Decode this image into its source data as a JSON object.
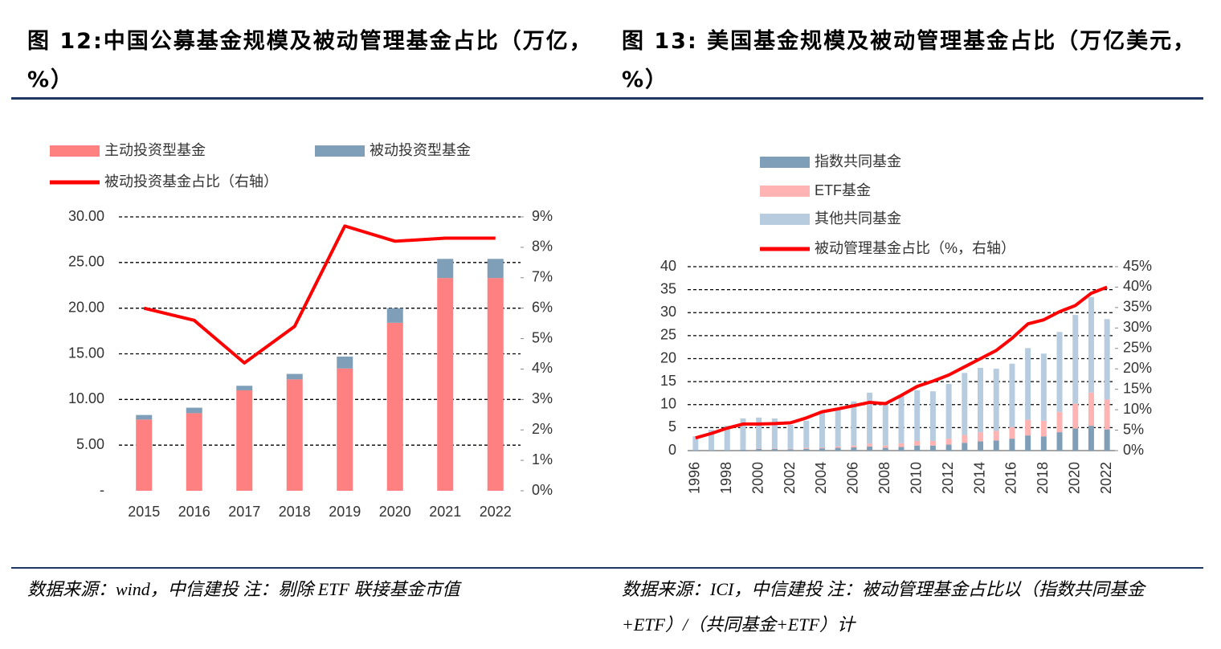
{
  "chart_data": [
    {
      "type": "bar",
      "title": "图 12:中国公募基金规模及被动管理基金占比（万亿，%）",
      "note": "数据来源：wind，中信建投 注：剔除 ETF 联接基金市值",
      "categories": [
        "2015",
        "2016",
        "2017",
        "2018",
        "2019",
        "2020",
        "2021",
        "2022"
      ],
      "series": [
        {
          "name": "主动投资型基金",
          "color": "#ff8080",
          "values": [
            7.8,
            8.5,
            11.0,
            12.2,
            13.4,
            18.4,
            23.3,
            23.3
          ]
        },
        {
          "name": "被动投资型基金",
          "color": "#7f9fb8",
          "values": [
            0.5,
            0.6,
            0.5,
            0.6,
            1.3,
            1.6,
            2.1,
            2.1
          ]
        },
        {
          "name": "被动投资基金占比（右轴）",
          "color": "#ff0000",
          "axis": "y2",
          "type": "line",
          "values": [
            6.0,
            5.6,
            4.2,
            5.4,
            8.7,
            8.2,
            8.3,
            8.3
          ]
        }
      ],
      "ylim": [
        0,
        30
      ],
      "yticks": [
        {
          "value": 0,
          "label": "-"
        },
        {
          "value": 5,
          "label": "5.00"
        },
        {
          "value": 10,
          "label": "10.00"
        },
        {
          "value": 15,
          "label": "15.00"
        },
        {
          "value": 20,
          "label": "20.00"
        },
        {
          "value": 25,
          "label": "25.00"
        },
        {
          "value": 30,
          "label": "30.00"
        }
      ],
      "y2lim": [
        0,
        9
      ],
      "y2ticks": [
        {
          "value": 0,
          "label": "0%"
        },
        {
          "value": 1,
          "label": "1%"
        },
        {
          "value": 2,
          "label": "2%"
        },
        {
          "value": 3,
          "label": "3%"
        },
        {
          "value": 4,
          "label": "4%"
        },
        {
          "value": 5,
          "label": "5%"
        },
        {
          "value": 6,
          "label": "6%"
        },
        {
          "value": 7,
          "label": "7%"
        },
        {
          "value": 8,
          "label": "8%"
        },
        {
          "value": 9,
          "label": "9%"
        }
      ],
      "grid": true
    },
    {
      "type": "bar",
      "title": "图 13: 美国基金规模及被动管理基金占比（万亿美元，%）",
      "note": "数据来源：ICI，中信建投 注：被动管理基金占比以（指数共同基金+ETF）/（共同基金+ETF）计",
      "categories": [
        "1996",
        null,
        "1998",
        null,
        "2000",
        null,
        "2002",
        null,
        "2004",
        null,
        "2006",
        null,
        "2008",
        null,
        "2010",
        null,
        "2012",
        null,
        "2014",
        null,
        "2016",
        null,
        "2018",
        null,
        "2020",
        null,
        "2022"
      ],
      "series": [
        {
          "name": "指数共同基金",
          "color": "#7f9fb8",
          "values": [
            0.1,
            0.1,
            0.1,
            0.2,
            0.4,
            0.4,
            0.3,
            0.4,
            0.5,
            0.6,
            0.7,
            0.9,
            0.6,
            0.8,
            1.1,
            1.1,
            1.3,
            1.7,
            2.0,
            2.2,
            2.6,
            3.3,
            3.1,
            4.0,
            4.8,
            5.4,
            4.6
          ]
        },
        {
          "name": "ETF基金",
          "color": "#ffb3b3",
          "values": [
            0,
            0,
            0,
            0,
            0.1,
            0.1,
            0.1,
            0.2,
            0.2,
            0.3,
            0.4,
            0.6,
            0.5,
            0.8,
            1.0,
            1.0,
            1.3,
            1.7,
            2.0,
            2.1,
            2.5,
            3.4,
            3.4,
            4.4,
            5.4,
            7.2,
            6.5
          ]
        },
        {
          "name": "其他共同基金",
          "color": "#b8cce0",
          "values": [
            3.0,
            4.4,
            5.3,
            6.8,
            6.7,
            6.5,
            5.2,
            5.9,
            7.5,
            8.0,
            9.6,
            11.1,
            8.9,
            10.3,
            11.0,
            10.8,
            11.9,
            13.5,
            14.0,
            13.5,
            13.8,
            15.6,
            14.6,
            17.4,
            19.3,
            20.8,
            17.5
          ]
        },
        {
          "name": "被动管理基金占比（%，右轴）",
          "color": "#ff0000",
          "axis": "y2",
          "type": "line",
          "values": [
            3.1,
            4.2,
            5.5,
            6.5,
            6.5,
            6.6,
            6.8,
            8.0,
            9.5,
            10.2,
            11.0,
            11.8,
            11.5,
            13.5,
            15.7,
            17.0,
            18.5,
            20.5,
            22.5,
            24.5,
            27.5,
            31.0,
            32.0,
            34.0,
            35.5,
            38.5,
            40.0
          ]
        }
      ],
      "ylim": [
        0,
        40
      ],
      "yticks": [
        0,
        5,
        10,
        15,
        20,
        25,
        30,
        35,
        40
      ],
      "y2lim": [
        0,
        45
      ],
      "y2ticks": [
        {
          "value": 0,
          "label": "0%"
        },
        {
          "value": 5,
          "label": "5%"
        },
        {
          "value": 10,
          "label": "10%"
        },
        {
          "value": 15,
          "label": "15%"
        },
        {
          "value": 20,
          "label": "20%"
        },
        {
          "value": 25,
          "label": "25%"
        },
        {
          "value": 30,
          "label": "30%"
        },
        {
          "value": 35,
          "label": "35%"
        },
        {
          "value": 40,
          "label": "40%"
        },
        {
          "value": 45,
          "label": "45%"
        }
      ],
      "grid": true
    }
  ]
}
